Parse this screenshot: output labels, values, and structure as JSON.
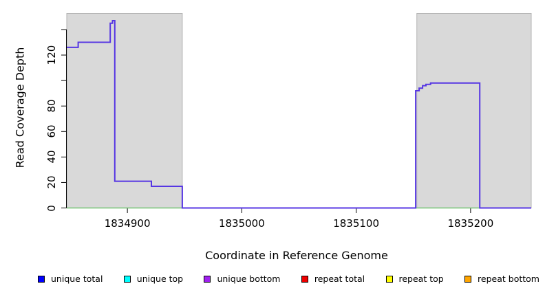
{
  "chart_data": {
    "type": "line",
    "title": "",
    "xlabel": "Coordinate in Reference Genome",
    "ylabel": "Read Coverage Depth",
    "xlim": [
      1834847,
      1835253
    ],
    "ylim": [
      0,
      155
    ],
    "grid": false,
    "x_ticks": [
      {
        "value": 1834900,
        "label": "1834900"
      },
      {
        "value": 1835000,
        "label": "1835000"
      },
      {
        "value": 1835100,
        "label": "1835100"
      },
      {
        "value": 1835200,
        "label": "1835200"
      }
    ],
    "y_ticks": [
      {
        "value": 0,
        "label": "0"
      },
      {
        "value": 20,
        "label": "20"
      },
      {
        "value": 40,
        "label": "40"
      },
      {
        "value": 60,
        "label": "60"
      },
      {
        "value": 80,
        "label": "80"
      },
      {
        "value": 100,
        "label": ""
      },
      {
        "value": 120,
        "label": "120"
      },
      {
        "value": 140,
        "label": ""
      }
    ],
    "shaded_regions": [
      {
        "x_start": 1834847,
        "x_end": 1834948,
        "color": "#d9d9d9",
        "border": "#b3b3b3"
      },
      {
        "x_start": 1835153,
        "x_end": 1835253,
        "color": "#d9d9d9",
        "border": "#b3b3b3"
      }
    ],
    "series": [
      {
        "name": "zero-baseline",
        "color": "#72c272",
        "width": 1.6,
        "points": [
          [
            1834847,
            0
          ],
          [
            1835253,
            0
          ]
        ]
      },
      {
        "name": "unique-bottom-coverage",
        "color": "#5636e3",
        "width": 2,
        "points": [
          [
            1834847,
            126
          ],
          [
            1834857,
            126
          ],
          [
            1834857,
            130
          ],
          [
            1834885,
            130
          ],
          [
            1834885,
            145
          ],
          [
            1834887,
            145
          ],
          [
            1834887,
            147
          ],
          [
            1834889,
            147
          ],
          [
            1834889,
            21
          ],
          [
            1834921,
            21
          ],
          [
            1834921,
            17
          ],
          [
            1834948,
            17
          ],
          [
            1834948,
            0
          ],
          [
            1835152,
            0
          ],
          [
            1835152,
            92
          ],
          [
            1835155,
            92
          ],
          [
            1835155,
            94
          ],
          [
            1835158,
            94
          ],
          [
            1835158,
            96
          ],
          [
            1835161,
            96
          ],
          [
            1835161,
            97
          ],
          [
            1835165,
            97
          ],
          [
            1835165,
            98
          ],
          [
            1835208,
            98
          ],
          [
            1835208,
            0
          ],
          [
            1835253,
            0
          ]
        ]
      }
    ]
  },
  "legend": {
    "position": "bottom",
    "items": [
      {
        "label": "unique total",
        "color": "#0000ff"
      },
      {
        "label": "unique top",
        "color": "#00ffff"
      },
      {
        "label": "unique bottom",
        "color": "#a020f0"
      },
      {
        "label": "repeat total",
        "color": "#ee0000"
      },
      {
        "label": "repeat top",
        "color": "#ffff00"
      },
      {
        "label": "repeat bottom",
        "color": "#ffa500"
      }
    ]
  }
}
